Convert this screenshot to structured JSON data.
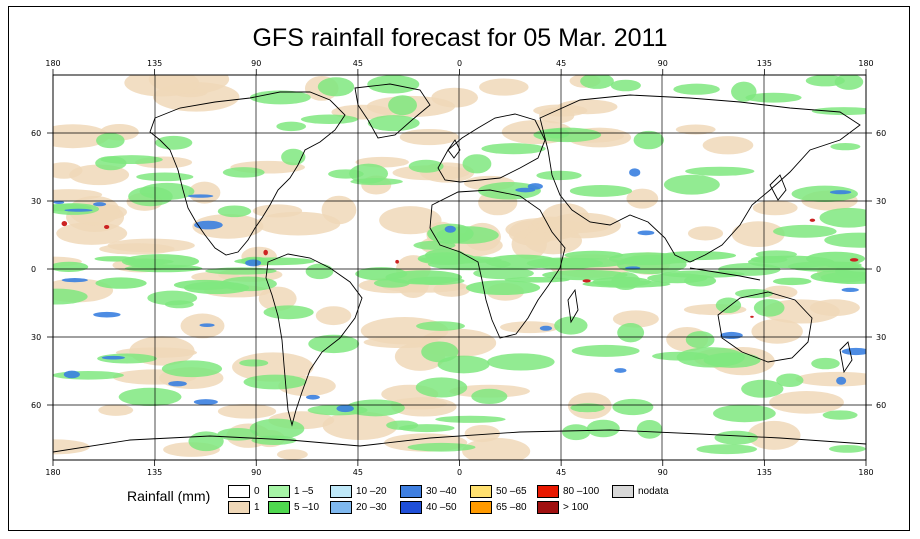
{
  "title": "GFS rainfall forecast for 05 Mar. 2011",
  "map": {
    "lon_ticks": [
      "180",
      "135",
      "90",
      "45",
      "0",
      "45",
      "90",
      "135",
      "180"
    ],
    "lat_ticks_left": [
      "60",
      "30",
      "0",
      "30",
      "60"
    ],
    "lat_ticks_right": [
      "60",
      "30",
      "0",
      "30",
      "60"
    ],
    "colors": {
      "ocean_dry": "#ffffff",
      "light_rain": "#f0d8b8",
      "green_rain": "#7fe87f",
      "heavy_blue": "#3a7fe0",
      "extreme_red": "#cc2222",
      "land_outline": "#000000"
    }
  },
  "legend": {
    "title": "Rainfall (mm)",
    "items": [
      {
        "label": "0",
        "color": "#ffffff"
      },
      {
        "label": "1",
        "color": "#f0d8b8"
      },
      {
        "label": "1 –5",
        "color": "#a6f4a6"
      },
      {
        "label": "5 –10",
        "color": "#4fd84f"
      },
      {
        "label": "10 –20",
        "color": "#bfe8f8"
      },
      {
        "label": "20 –30",
        "color": "#7fb8ef"
      },
      {
        "label": "30 –40",
        "color": "#3f7fe0"
      },
      {
        "label": "40 –50",
        "color": "#1f4fd8"
      },
      {
        "label": "50 –65",
        "color": "#ffe070"
      },
      {
        "label": "65 –80",
        "color": "#ff9a00"
      },
      {
        "label": "80 –100",
        "color": "#e81800"
      },
      {
        "label": "> 100",
        "color": "#a01010"
      },
      {
        "label": "nodata",
        "color": "#d8d8d8"
      }
    ]
  }
}
